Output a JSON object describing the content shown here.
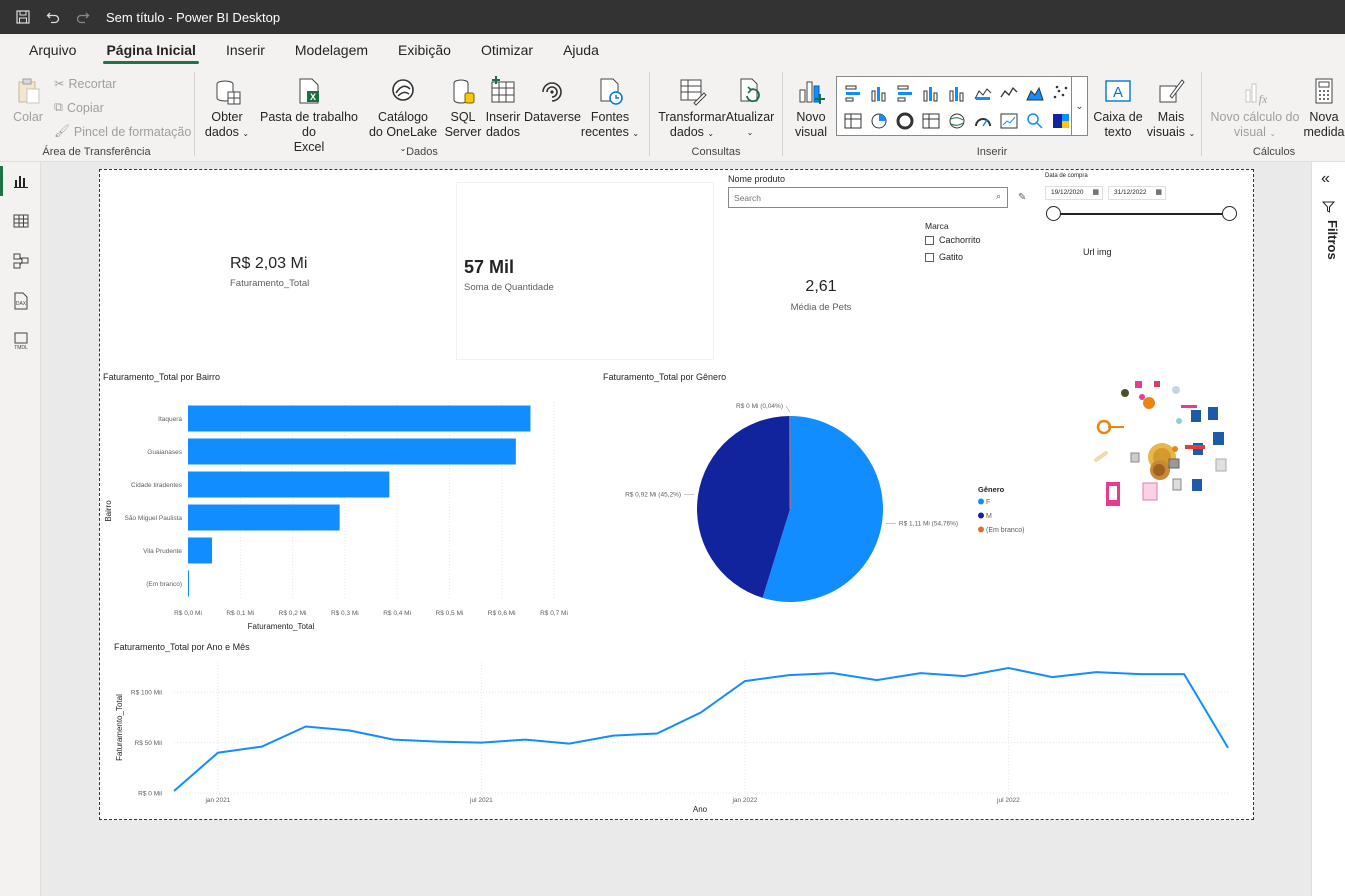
{
  "window": {
    "title": "Sem título - Power BI Desktop"
  },
  "menu": {
    "tabs": [
      "Arquivo",
      "Página Inicial",
      "Inserir",
      "Modelagem",
      "Exibição",
      "Otimizar",
      "Ajuda"
    ]
  },
  "ribbon": {
    "clipboard": {
      "paste": "Colar",
      "cut": "Recortar",
      "copy": "Copiar",
      "format_painter": "Pincel de formatação",
      "group": "Área de Transferência"
    },
    "data": {
      "get_data": [
        "Obter",
        "dados"
      ],
      "excel": [
        "Pasta de trabalho do",
        "Excel"
      ],
      "onelake": [
        "Catálogo",
        "do OneLake"
      ],
      "sql": [
        "SQL",
        "Server"
      ],
      "enter_data": [
        "Inserir",
        "dados"
      ],
      "dataverse": [
        "Dataverse"
      ],
      "recent": [
        "Fontes",
        "recentes"
      ],
      "group": "Dados"
    },
    "queries": {
      "transform": [
        "Transformar",
        "dados"
      ],
      "refresh": [
        "Atualizar"
      ],
      "group": "Consultas"
    },
    "insert": {
      "new_visual": [
        "Novo",
        "visual"
      ],
      "text_box": [
        "Caixa de",
        "texto"
      ],
      "more_visuals": [
        "Mais",
        "visuais"
      ],
      "group": "Inserir"
    },
    "calculations": {
      "new_visual_calc": [
        "Novo cálculo do",
        "visual"
      ],
      "new_measure": [
        "Nova",
        "medida"
      ],
      "group": "Cálculos"
    }
  },
  "filters_pane": {
    "label": "Filtros"
  },
  "report": {
    "kpi_revenue": {
      "value": "R$ 2,03 Mi",
      "label": "Faturamento_Total"
    },
    "kpi_quantity": {
      "value": "57 Mil",
      "label": "Soma de Quantidade"
    },
    "kpi_pets": {
      "value": "2,61",
      "label": "Média de Pets"
    },
    "product_slicer": {
      "title": "Nome produto",
      "placeholder": "Search"
    },
    "brand_slicer": {
      "title": "Marca",
      "options": [
        "Cachorrito",
        "Gatito"
      ]
    },
    "date_slicer": {
      "title": "Data de compra",
      "start": "19/12/2020",
      "end": "31/12/2022"
    },
    "url_img_label": "Url img"
  },
  "chart_data": [
    {
      "type": "bar",
      "title": "Faturamento_Total por Bairro",
      "xlabel": "Faturamento_Total",
      "ylabel": "Bairro",
      "categories": [
        "Itaquera",
        "Guaianases",
        "Cidade tiradentes",
        "São Miguel Paulista",
        "Vila Prudente",
        "(Em branco)"
      ],
      "values": [
        0.655,
        0.627,
        0.385,
        0.29,
        0.046,
        0.001
      ],
      "xlim": [
        0,
        0.7
      ],
      "xticks": [
        "R$ 0,0 Mi",
        "R$ 0,1 Mi",
        "R$ 0,2 Mi",
        "R$ 0,3 Mi",
        "R$ 0,4 Mi",
        "R$ 0,5 Mi",
        "R$ 0,6 Mi",
        "R$ 0,7 Mi"
      ],
      "color": "#118dff"
    },
    {
      "type": "pie",
      "title": "Faturamento_Total por Gênero",
      "legend_title": "Gênero",
      "slices": [
        {
          "name": "F",
          "value": 54.76,
          "label": "R$ 1,11 Mi (54,76%)",
          "color": "#118dff"
        },
        {
          "name": "M",
          "value": 45.2,
          "label": "R$ 0,92 Mi (45,2%)",
          "color": "#12239e"
        },
        {
          "name": "(Em branco)",
          "value": 0.04,
          "label": "R$ 0 Mi (0,04%)",
          "color": "#e66c37"
        }
      ]
    },
    {
      "type": "line",
      "title": "Faturamento_Total por Ano e Mês",
      "xlabel": "Ano",
      "ylabel": "Faturamento_Total",
      "x": [
        "2020-12",
        "2021-01",
        "2021-02",
        "2021-03",
        "2021-04",
        "2021-05",
        "2021-06",
        "2021-07",
        "2021-08",
        "2021-09",
        "2021-10",
        "2021-11",
        "2021-12",
        "2022-01",
        "2022-02",
        "2022-03",
        "2022-04",
        "2022-05",
        "2022-06",
        "2022-07",
        "2022-08",
        "2022-09",
        "2022-10",
        "2022-11",
        "2022-12"
      ],
      "values": [
        2,
        40,
        46,
        66,
        62,
        53,
        51,
        50,
        53,
        49,
        57,
        59,
        80,
        111,
        117,
        119,
        112,
        119,
        116,
        124,
        115,
        120,
        118,
        118,
        45
      ],
      "ylim": [
        0,
        130
      ],
      "yticks": [
        0,
        50,
        100
      ],
      "ytick_labels": [
        "R$ 0 Mil",
        "R$ 50 Mil",
        "R$ 100 Mil"
      ],
      "xtick_labels": [
        "jan 2021",
        "jul 2021",
        "jan 2022",
        "jul 2022"
      ],
      "color": "#118dff"
    }
  ]
}
